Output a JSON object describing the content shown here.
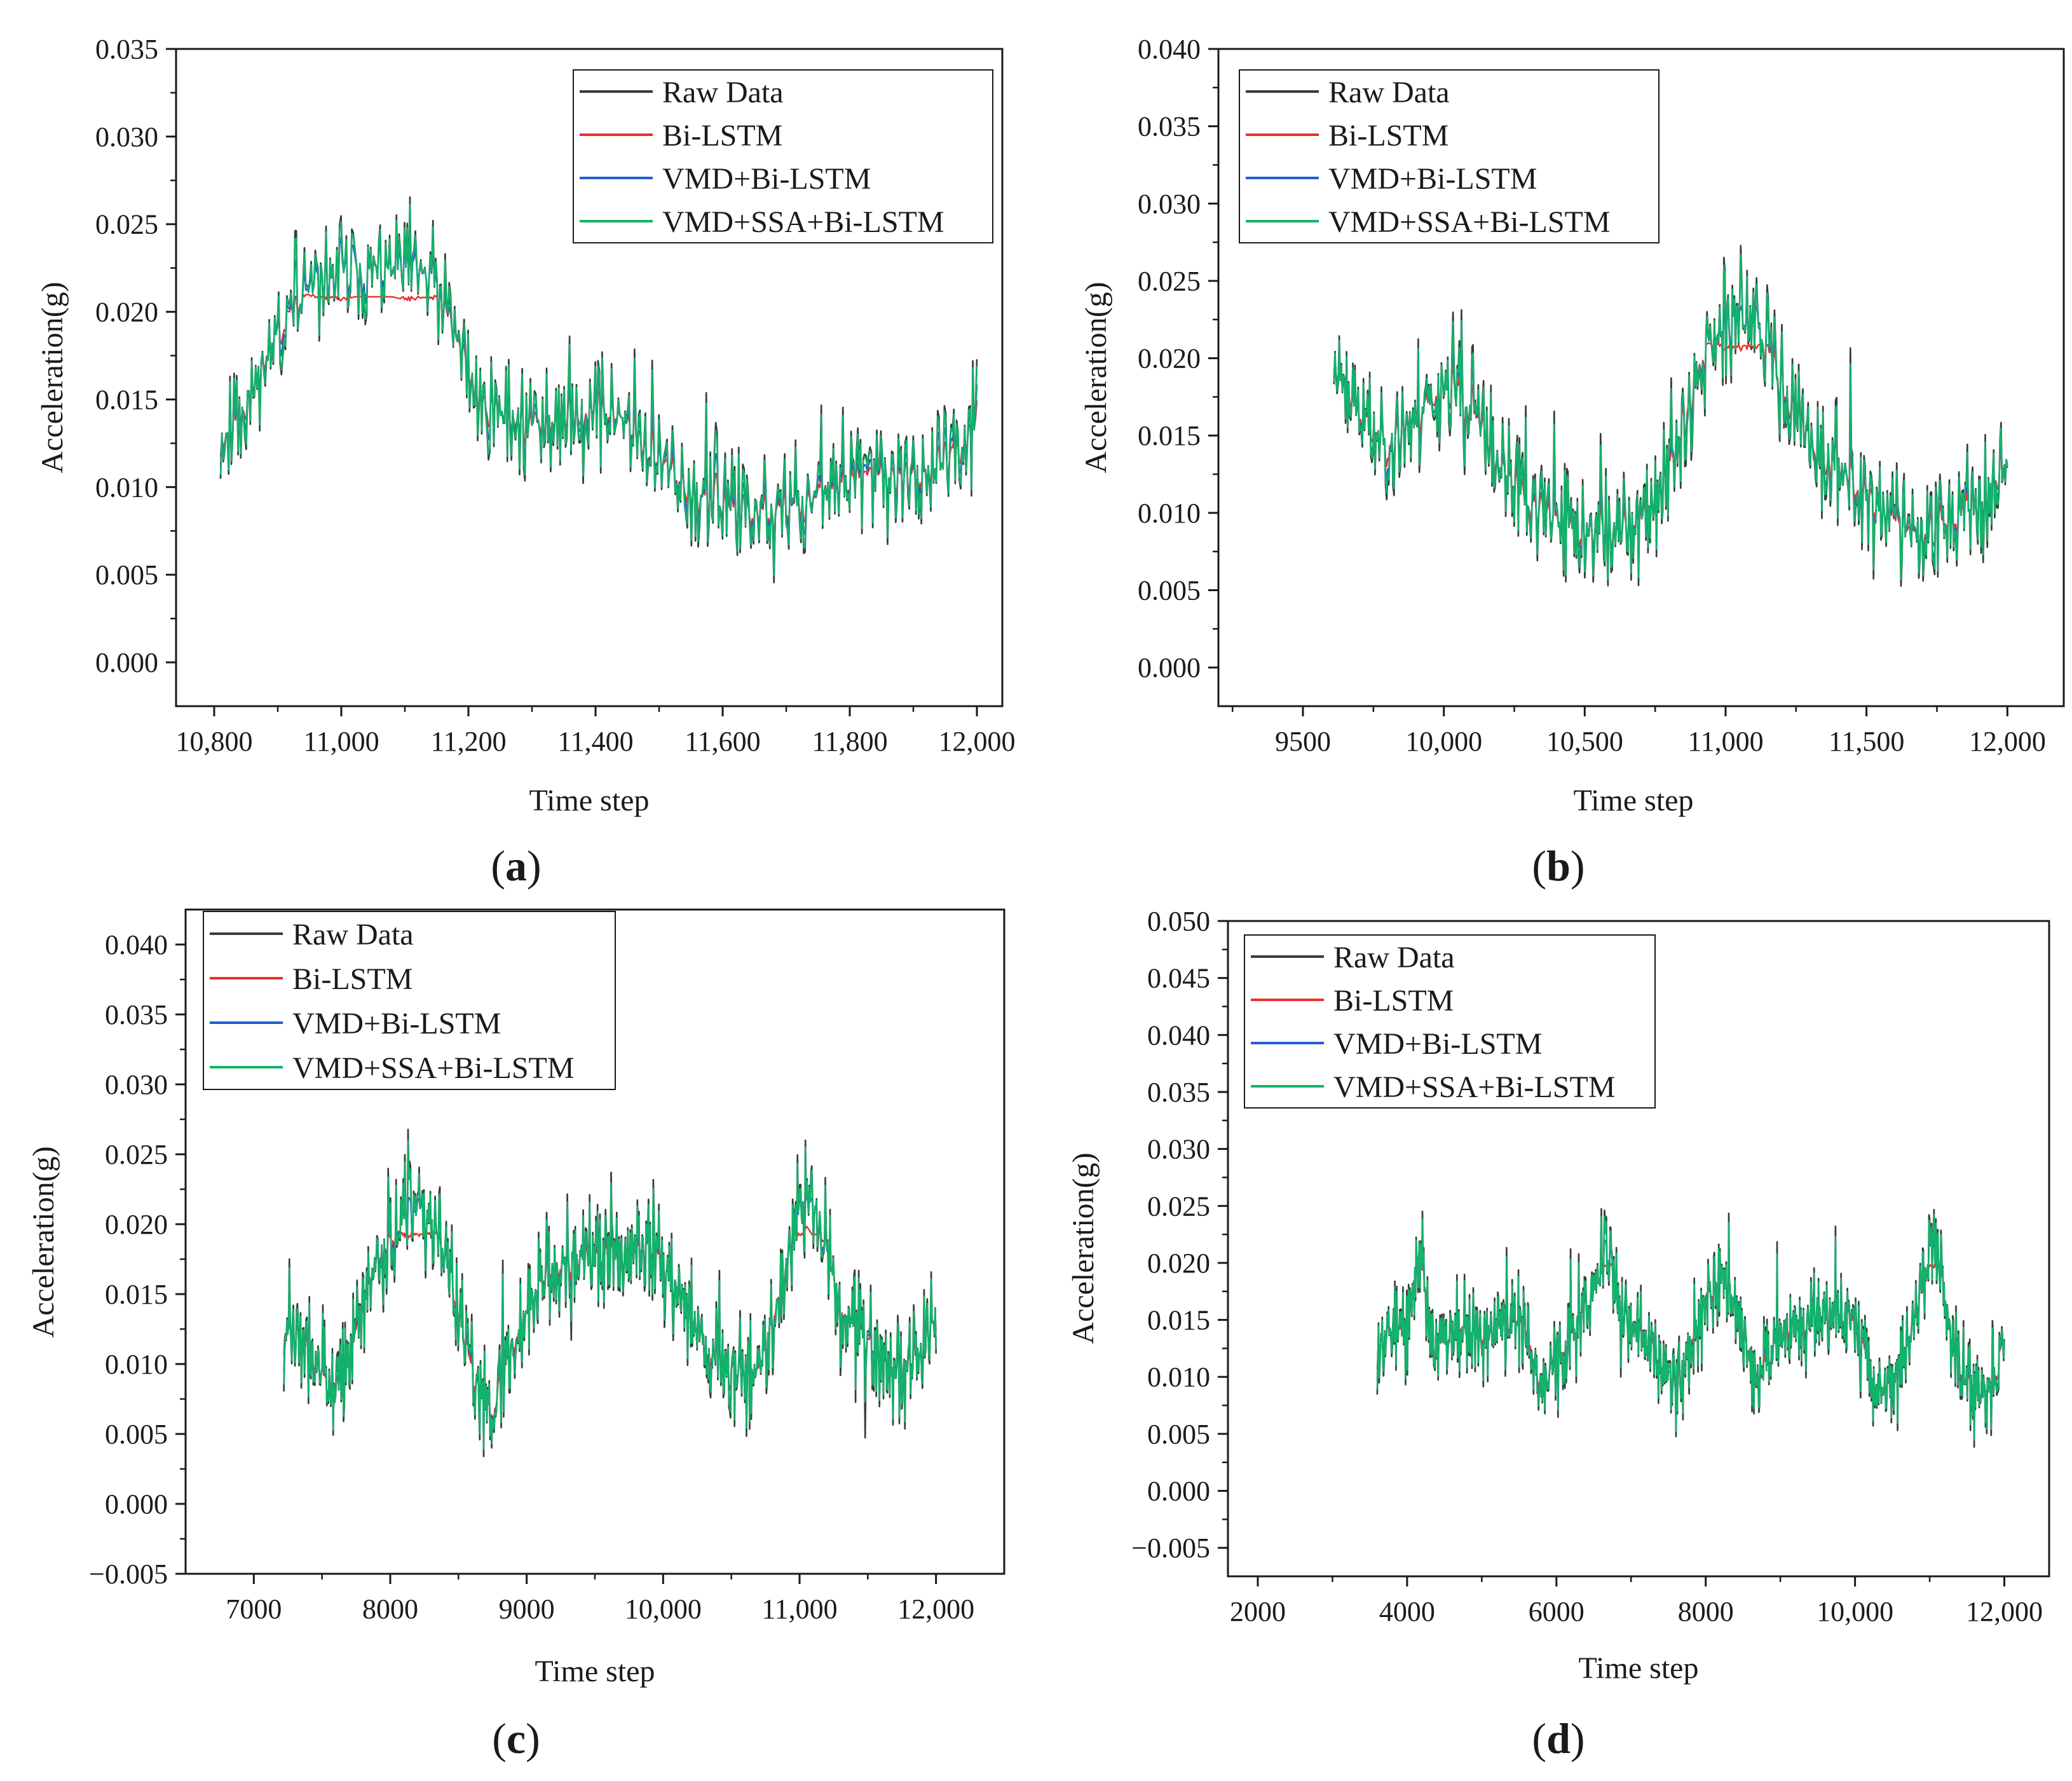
{
  "legend_labels": [
    "Raw Data",
    "Bi-LSTM",
    "VMD+Bi-LSTM",
    "VMD+SSA+Bi-LSTM"
  ],
  "colors": {
    "raw": "#3a3a3a",
    "bilstm": "#e8312f",
    "vmd_bilstm": "#1f5fd1",
    "vmd_ssa_bilstm": "#12b36a",
    "axis": "#1a1a1a"
  },
  "chart_data": [
    {
      "type": "line",
      "panel": "a",
      "xlabel": "Time step",
      "ylabel": "Acceleration(g)",
      "xlim": [
        10740,
        12040
      ],
      "ylim": [
        -0.0025,
        0.035
      ],
      "xticks": [
        10800,
        11000,
        11200,
        11400,
        11600,
        11800,
        12000
      ],
      "xtick_labels": [
        "10,800",
        "11,000",
        "11,200",
        "11,400",
        "11,600",
        "11,800",
        "12,000"
      ],
      "yticks": [
        0.0,
        0.005,
        0.01,
        0.015,
        0.02,
        0.025,
        0.03,
        0.035
      ],
      "ytick_labels": [
        "0.000",
        "0.005",
        "0.010",
        "0.015",
        "0.020",
        "0.025",
        "0.030",
        "0.035"
      ],
      "legend_position": "top-right",
      "x_range": [
        10810,
        12000
      ],
      "n_points": 560,
      "noise": 0.0048,
      "seed": 11,
      "trend": [
        [
          10810,
          0.0125
        ],
        [
          10840,
          0.014
        ],
        [
          10900,
          0.019
        ],
        [
          10960,
          0.0215
        ],
        [
          11020,
          0.0225
        ],
        [
          11080,
          0.0225
        ],
        [
          11140,
          0.022
        ],
        [
          11180,
          0.0185
        ],
        [
          11220,
          0.0148
        ],
        [
          11300,
          0.0135
        ],
        [
          11400,
          0.0145
        ],
        [
          11440,
          0.014
        ],
        [
          11480,
          0.012
        ],
        [
          11560,
          0.0095
        ],
        [
          11620,
          0.0085
        ],
        [
          11680,
          0.0085
        ],
        [
          11760,
          0.0095
        ],
        [
          11840,
          0.0105
        ],
        [
          11900,
          0.0105
        ],
        [
          11960,
          0.0115
        ],
        [
          12000,
          0.0135
        ]
      ],
      "series_names": [
        "Raw Data",
        "Bi-LSTM",
        "VMD+Bi-LSTM",
        "VMD+SSA+Bi-LSTM"
      ],
      "series_damping": [
        1.0,
        0.38,
        0.62,
        0.9
      ],
      "series_clip": [
        1,
        0.021,
        0.0245,
        1
      ]
    },
    {
      "type": "line",
      "panel": "b",
      "xlabel": "Time step",
      "ylabel": "Acceleration(g)",
      "xlim": [
        9200,
        12200
      ],
      "ylim": [
        -0.0025,
        0.04
      ],
      "xticks": [
        9500,
        10000,
        10500,
        11000,
        11500,
        12000
      ],
      "xtick_labels": [
        "9500",
        "10,000",
        "10,500",
        "11,000",
        "11,500",
        "12,000"
      ],
      "yticks": [
        0.0,
        0.005,
        0.01,
        0.015,
        0.02,
        0.025,
        0.03,
        0.035,
        0.04
      ],
      "ytick_labels": [
        "0.000",
        "0.005",
        "0.010",
        "0.015",
        "0.020",
        "0.025",
        "0.030",
        "0.035",
        "0.040"
      ],
      "legend_position": "top-left",
      "x_range": [
        9610,
        12000
      ],
      "n_points": 640,
      "noise": 0.0055,
      "seed": 23,
      "trend": [
        [
          9610,
          0.0195
        ],
        [
          9700,
          0.0165
        ],
        [
          9800,
          0.0145
        ],
        [
          9900,
          0.016
        ],
        [
          10000,
          0.0185
        ],
        [
          10100,
          0.0165
        ],
        [
          10200,
          0.013
        ],
        [
          10300,
          0.0105
        ],
        [
          10450,
          0.009
        ],
        [
          10600,
          0.0088
        ],
        [
          10700,
          0.0095
        ],
        [
          10800,
          0.0125
        ],
        [
          10900,
          0.0195
        ],
        [
          11000,
          0.0225
        ],
        [
          11100,
          0.0225
        ],
        [
          11180,
          0.019
        ],
        [
          11300,
          0.0145
        ],
        [
          11400,
          0.013
        ],
        [
          11500,
          0.011
        ],
        [
          11650,
          0.0085
        ],
        [
          11800,
          0.0095
        ],
        [
          11900,
          0.0105
        ],
        [
          12000,
          0.0135
        ]
      ],
      "series_names": [
        "Raw Data",
        "Bi-LSTM",
        "VMD+Bi-LSTM",
        "VMD+SSA+Bi-LSTM"
      ],
      "series_damping": [
        1.0,
        0.42,
        0.7,
        0.88
      ],
      "series_clip": [
        1,
        0.021,
        0.0235,
        1
      ]
    },
    {
      "type": "line",
      "panel": "c",
      "xlabel": "Time step",
      "ylabel": "Acceleration(g)",
      "xlim": [
        6500,
        12500
      ],
      "ylim": [
        -0.005,
        0.0425
      ],
      "xticks": [
        7000,
        8000,
        9000,
        10000,
        11000,
        12000
      ],
      "xtick_labels": [
        "7000",
        "8000",
        "9000",
        "10,000",
        "11,000",
        "12,000"
      ],
      "yticks": [
        -0.005,
        0.0,
        0.005,
        0.01,
        0.015,
        0.02,
        0.025,
        0.03,
        0.035,
        0.04
      ],
      "ytick_labels": [
        "−0.005",
        "0.000",
        "0.005",
        "0.010",
        "0.015",
        "0.020",
        "0.025",
        "0.030",
        "0.035",
        "0.040"
      ],
      "legend_position": "top-left",
      "x_range": [
        7220,
        12000
      ],
      "n_points": 820,
      "noise": 0.0056,
      "seed": 37,
      "trend": [
        [
          7220,
          0.0125
        ],
        [
          7400,
          0.011
        ],
        [
          7600,
          0.0075
        ],
        [
          7750,
          0.012
        ],
        [
          7900,
          0.0175
        ],
        [
          8100,
          0.0205
        ],
        [
          8300,
          0.0205
        ],
        [
          8450,
          0.016
        ],
        [
          8600,
          0.009
        ],
        [
          8750,
          0.0065
        ],
        [
          8900,
          0.0115
        ],
        [
          9100,
          0.016
        ],
        [
          9300,
          0.0175
        ],
        [
          9500,
          0.0175
        ],
        [
          9700,
          0.0175
        ],
        [
          9900,
          0.0185
        ],
        [
          10100,
          0.0155
        ],
        [
          10300,
          0.0115
        ],
        [
          10500,
          0.0095
        ],
        [
          10700,
          0.0095
        ],
        [
          10900,
          0.017
        ],
        [
          11050,
          0.022
        ],
        [
          11150,
          0.0205
        ],
        [
          11300,
          0.014
        ],
        [
          11500,
          0.0115
        ],
        [
          11700,
          0.009
        ],
        [
          11900,
          0.011
        ],
        [
          12000,
          0.0135
        ]
      ],
      "series_names": [
        "Raw Data",
        "Bi-LSTM",
        "VMD+Bi-LSTM",
        "VMD+SSA+Bi-LSTM"
      ],
      "series_damping": [
        1.0,
        0.42,
        0.7,
        0.88
      ],
      "series_clip": [
        1,
        0.0195,
        0.022,
        1
      ]
    },
    {
      "type": "line",
      "panel": "d",
      "xlabel": "Time step",
      "ylabel": "Acceleration(g)",
      "xlim": [
        1600,
        12600
      ],
      "ylim": [
        -0.0075,
        0.05
      ],
      "xticks": [
        2000,
        4000,
        6000,
        8000,
        10000,
        12000
      ],
      "xtick_labels": [
        "2000",
        "4000",
        "6000",
        "8000",
        "10,000",
        "12,000"
      ],
      "yticks": [
        -0.005,
        0.0,
        0.005,
        0.01,
        0.015,
        0.02,
        0.025,
        0.03,
        0.035,
        0.04,
        0.045,
        0.05
      ],
      "ytick_labels": [
        "−0.005",
        "0.000",
        "0.005",
        "0.010",
        "0.015",
        "0.020",
        "0.025",
        "0.030",
        "0.035",
        "0.040",
        "0.045",
        "0.050"
      ],
      "legend_position": "top-left",
      "x_range": [
        3600,
        12000
      ],
      "n_points": 1000,
      "noise": 0.0058,
      "seed": 53,
      "trend": [
        [
          3600,
          0.0125
        ],
        [
          3800,
          0.0145
        ],
        [
          4000,
          0.0135
        ],
        [
          4150,
          0.0215
        ],
        [
          4350,
          0.0125
        ],
        [
          4500,
          0.013
        ],
        [
          4700,
          0.0145
        ],
        [
          5000,
          0.0135
        ],
        [
          5300,
          0.0145
        ],
        [
          5600,
          0.0145
        ],
        [
          5800,
          0.009
        ],
        [
          6000,
          0.0115
        ],
        [
          6300,
          0.0145
        ],
        [
          6500,
          0.0175
        ],
        [
          6700,
          0.021
        ],
        [
          6850,
          0.0155
        ],
        [
          7100,
          0.0135
        ],
        [
          7300,
          0.0125
        ],
        [
          7600,
          0.0085
        ],
        [
          7800,
          0.0135
        ],
        [
          8000,
          0.0165
        ],
        [
          8200,
          0.019
        ],
        [
          8400,
          0.0165
        ],
        [
          8600,
          0.0115
        ],
        [
          8750,
          0.0095
        ],
        [
          8900,
          0.0125
        ],
        [
          9100,
          0.0145
        ],
        [
          9300,
          0.0145
        ],
        [
          9500,
          0.016
        ],
        [
          9700,
          0.0155
        ],
        [
          9900,
          0.0155
        ],
        [
          10100,
          0.0125
        ],
        [
          10300,
          0.0085
        ],
        [
          10500,
          0.0095
        ],
        [
          10700,
          0.0125
        ],
        [
          10900,
          0.0185
        ],
        [
          11050,
          0.0215
        ],
        [
          11150,
          0.0195
        ],
        [
          11300,
          0.0125
        ],
        [
          11500,
          0.0095
        ],
        [
          11700,
          0.0085
        ],
        [
          11850,
          0.0095
        ],
        [
          12000,
          0.0135
        ]
      ],
      "series_names": [
        "Raw Data",
        "Bi-LSTM",
        "VMD+Bi-LSTM",
        "VMD+SSA+Bi-LSTM"
      ],
      "series_damping": [
        1.0,
        0.45,
        0.72,
        0.88
      ],
      "series_clip": [
        1,
        0.02,
        0.022,
        1
      ]
    }
  ],
  "panel_labels": [
    "(a)",
    "(b)",
    "(c)",
    "(d)"
  ],
  "panel_letters": [
    "a",
    "b",
    "c",
    "d"
  ]
}
